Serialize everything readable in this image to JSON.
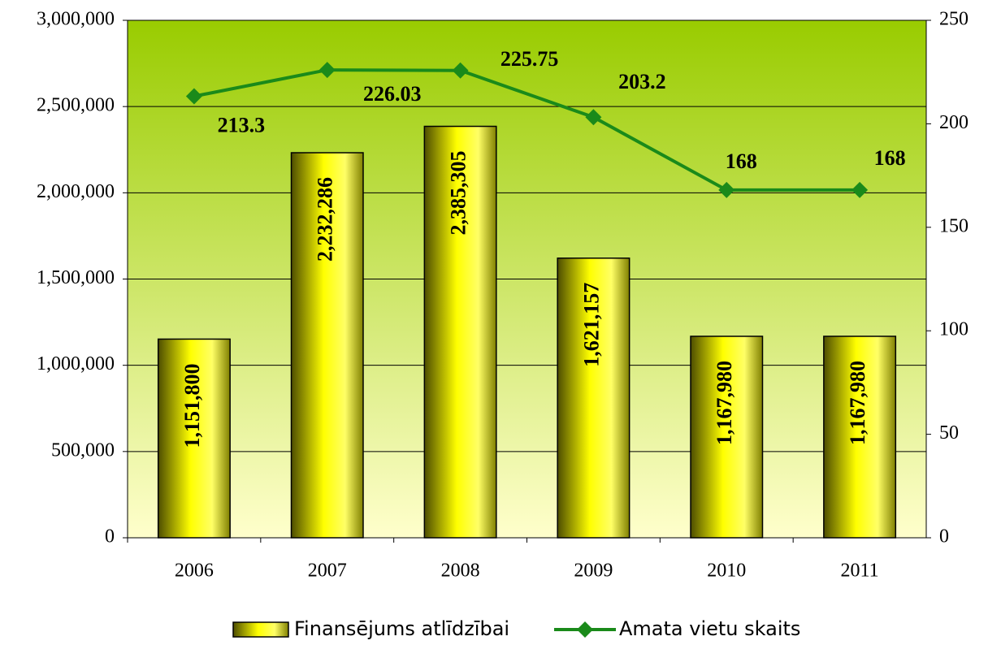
{
  "chart_data": {
    "type": "bar_line",
    "categories": [
      "2006",
      "2007",
      "2008",
      "2009",
      "2010",
      "2011"
    ],
    "series": [
      {
        "name": "Finansējums atlīdzībai",
        "type": "bar",
        "color": "#ffff00",
        "values": [
          1151800,
          2232286,
          2385305,
          1621157,
          1167980,
          1167980
        ],
        "value_labels": [
          "1,151,800",
          "2,232,286",
          "2,385,305",
          "1,621,157",
          "1,167,980",
          "1,167,980"
        ]
      },
      {
        "name": "Amata vietu skaits",
        "type": "line",
        "axis": "y2",
        "color": "#1a8a1a",
        "values": [
          213.3,
          226.03,
          225.75,
          203.2,
          168,
          168
        ]
      }
    ],
    "ylim": [
      0,
      3000000
    ],
    "yticks": [
      0,
      {
        "value": 500000,
        "label": "500,000"
      },
      {
        "value": 1000000,
        "label": "1,000,000"
      },
      {
        "value": 1500000,
        "label": "1,500,000"
      },
      {
        "value": 2000000,
        "label": "2,000,000"
      },
      {
        "value": 2500000,
        "label": "2,500,000"
      },
      {
        "value": 3000000,
        "label": "3,000,000"
      }
    ],
    "y2lim": [
      0,
      250
    ],
    "y2ticks": [
      0,
      50,
      100,
      150,
      200,
      250
    ],
    "grid": true,
    "legend": "bottom"
  }
}
